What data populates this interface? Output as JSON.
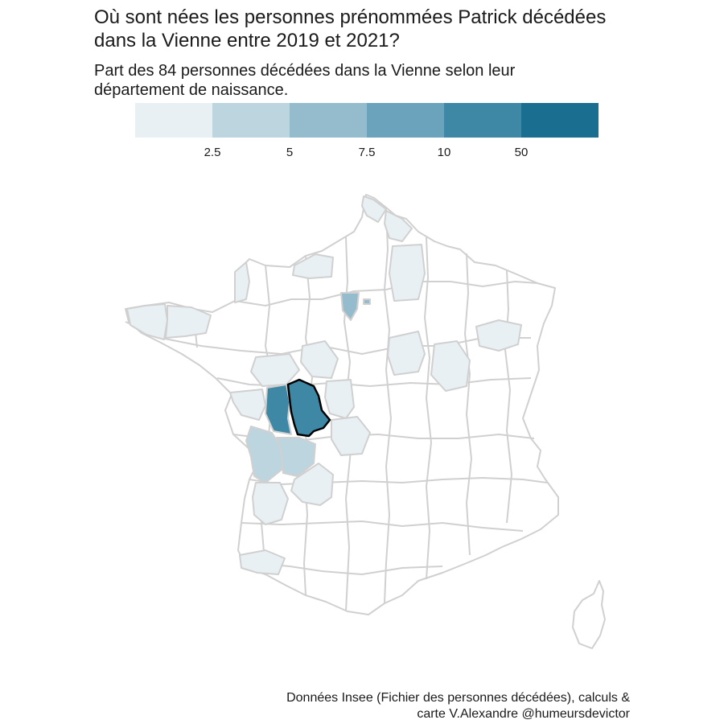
{
  "title_line1": "Où sont nées les personnes prénommées Patrick décédées",
  "title_line2": "dans la Vienne entre 2019 et 2021?",
  "subtitle_line1": "Part des 84 personnes décédées dans la Vienne selon leur",
  "subtitle_line2": "département de naissance.",
  "legend": {
    "colors": [
      "#e8f0f3",
      "#bdd5df",
      "#95bccc",
      "#6aa3bb",
      "#3e87a5",
      "#1a6e90"
    ],
    "ticks": [
      "2.5",
      "5",
      "7.5",
      "10",
      "50"
    ]
  },
  "map_colors": {
    "border": "#d0d0d0",
    "highlight_border": "#000000",
    "empty": "#ffffff"
  },
  "caption_line1": "Données Insee (Fichier des personnes décédées), calculs &",
  "caption_line2": "carte V.Alexandre @humeursdevictor"
}
